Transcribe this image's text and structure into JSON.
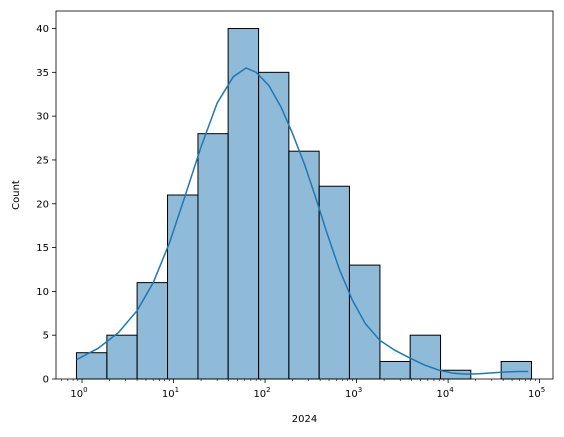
{
  "chart_data": {
    "type": "bar",
    "subtype": "histogram-with-kde",
    "xlabel": "2024",
    "ylabel": "Count",
    "x_scale": "log",
    "xlim": [
      0.52,
      140000
    ],
    "ylim": [
      0,
      42
    ],
    "grid": false,
    "bin_edges": [
      0.87,
      1.87,
      4.0,
      8.6,
      18.5,
      39.5,
      85,
      182,
      390,
      836,
      1800,
      3850,
      8270,
      17700,
      38000,
      81500
    ],
    "values": [
      3,
      5,
      11,
      21,
      28,
      40,
      35,
      26,
      22,
      13,
      2,
      5,
      1,
      0,
      2
    ],
    "bar_color": "#1f77b4",
    "bar_alpha": 0.5,
    "kde_color": "#1f77b4",
    "kde": {
      "x": [
        0.87,
        1.5,
        2.5,
        4,
        6,
        9,
        13,
        20,
        30,
        45,
        62,
        80,
        110,
        150,
        200,
        270,
        350,
        480,
        650,
        900,
        1250,
        1800,
        2600,
        3800,
        5500,
        8000,
        11500,
        16000,
        22000,
        30000,
        42000,
        58000,
        75000
      ],
      "y": [
        2.2,
        3.5,
        5.3,
        7.8,
        11,
        15.5,
        20.5,
        26.5,
        31.5,
        34.5,
        35.5,
        35,
        33.5,
        31,
        28,
        24.5,
        21,
        16.5,
        12.5,
        9,
        6.3,
        4.4,
        3.3,
        2.4,
        1.6,
        1.0,
        0.65,
        0.55,
        0.6,
        0.7,
        0.8,
        0.85,
        0.85
      ]
    },
    "yticks": [
      "0",
      "5",
      "10",
      "15",
      "20",
      "25",
      "30",
      "35",
      "40"
    ],
    "xticks": [
      {
        "base": "10",
        "exp": "0"
      },
      {
        "base": "10",
        "exp": "1"
      },
      {
        "base": "10",
        "exp": "2"
      },
      {
        "base": "10",
        "exp": "3"
      },
      {
        "base": "10",
        "exp": "4"
      },
      {
        "base": "10",
        "exp": "5"
      }
    ]
  }
}
